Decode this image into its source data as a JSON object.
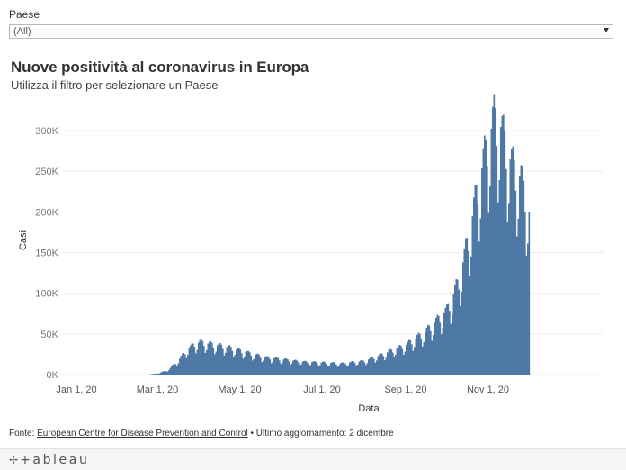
{
  "filter": {
    "label": "Paese",
    "selected": "(All)"
  },
  "chart_data": {
    "type": "bar",
    "title": "Nuove positività al coronavirus in Europa",
    "subtitle": "Utilizza il filtro per selezionare un Paese",
    "xlabel": "Data",
    "ylabel": "Casi",
    "x_ticks": [
      "Jan 1, 20",
      "Mar 1, 20",
      "May 1, 20",
      "Jul 1, 20",
      "Sep 1, 20",
      "Nov 1, 20"
    ],
    "y_ticks": [
      "0K",
      "50K",
      "100K",
      "150K",
      "200K",
      "250K",
      "300K"
    ],
    "ylim": [
      0,
      330000
    ],
    "grid": "horizontal",
    "bar_color": "#4e79a7",
    "series_anchors": [
      {
        "date": "2020-02-24",
        "cases": 300
      },
      {
        "date": "2020-03-01",
        "cases": 1500
      },
      {
        "date": "2020-03-08",
        "cases": 5000
      },
      {
        "date": "2020-03-15",
        "cases": 15000
      },
      {
        "date": "2020-03-22",
        "cases": 28000
      },
      {
        "date": "2020-03-28",
        "cases": 36000
      },
      {
        "date": "2020-04-01",
        "cases": 38000
      },
      {
        "date": "2020-04-08",
        "cases": 36000
      },
      {
        "date": "2020-04-15",
        "cases": 34000
      },
      {
        "date": "2020-04-22",
        "cases": 32000
      },
      {
        "date": "2020-05-01",
        "cases": 28000
      },
      {
        "date": "2020-05-10",
        "cases": 24000
      },
      {
        "date": "2020-05-20",
        "cases": 20000
      },
      {
        "date": "2020-06-01",
        "cases": 18000
      },
      {
        "date": "2020-06-15",
        "cases": 15000
      },
      {
        "date": "2020-07-01",
        "cases": 14000
      },
      {
        "date": "2020-07-15",
        "cases": 13000
      },
      {
        "date": "2020-08-01",
        "cases": 16000
      },
      {
        "date": "2020-08-15",
        "cases": 24000
      },
      {
        "date": "2020-09-01",
        "cases": 35000
      },
      {
        "date": "2020-09-15",
        "cases": 50000
      },
      {
        "date": "2020-10-01",
        "cases": 75000
      },
      {
        "date": "2020-10-10",
        "cases": 110000
      },
      {
        "date": "2020-10-17",
        "cases": 160000
      },
      {
        "date": "2020-10-24",
        "cases": 220000
      },
      {
        "date": "2020-10-31",
        "cases": 270000
      },
      {
        "date": "2020-11-05",
        "cases": 300000
      },
      {
        "date": "2020-11-10",
        "cases": 290000
      },
      {
        "date": "2020-11-15",
        "cases": 260000
      },
      {
        "date": "2020-11-20",
        "cases": 240000
      },
      {
        "date": "2020-11-25",
        "cases": 230000
      },
      {
        "date": "2020-12-01",
        "cases": 190000
      }
    ]
  },
  "footer": {
    "prefix": "Fonte: ",
    "source_link": "European Centre for Disease Prevention and Control",
    "suffix": " • Ultimo aggiornamento: 2 dicembre"
  },
  "brand": {
    "mark": "✢",
    "name": "+ableau"
  }
}
